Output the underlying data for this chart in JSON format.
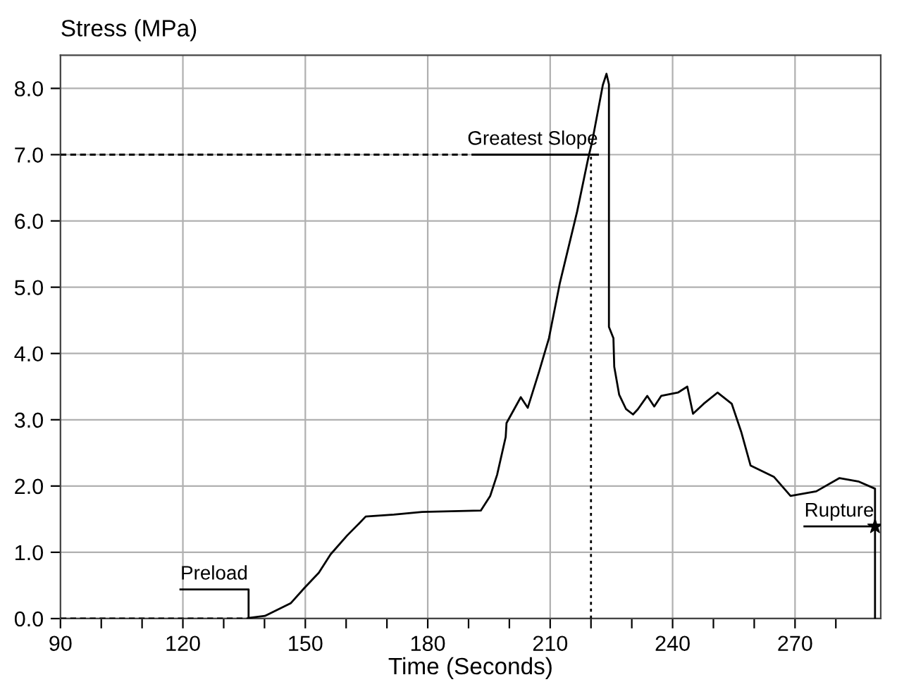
{
  "chart_data": {
    "type": "line",
    "xlabel": "Time (Seconds)",
    "ylabel": "Stress (MPa)",
    "xlim": [
      90,
      291
    ],
    "ylim": [
      0,
      8.5
    ],
    "xticks": [
      90,
      {
        "value": 100,
        "label": null
      },
      {
        "value": 110,
        "label": null
      },
      120,
      {
        "value": 130,
        "label": null
      },
      {
        "value": 140,
        "label": null
      },
      150,
      {
        "value": 160,
        "label": null
      },
      {
        "value": 170,
        "label": null
      },
      180,
      {
        "value": 190,
        "label": null
      },
      {
        "value": 200,
        "label": null
      },
      210,
      {
        "value": 220,
        "label": null
      },
      {
        "value": 230,
        "label": null
      },
      240,
      {
        "value": 250,
        "label": null
      },
      {
        "value": 260,
        "label": null
      },
      270,
      {
        "value": 280,
        "label": null
      }
    ],
    "yticks": [
      {
        "value": 0,
        "label": "0.0"
      },
      {
        "value": 1,
        "label": "1.0"
      },
      {
        "value": 2,
        "label": "2.0"
      },
      {
        "value": 3,
        "label": "3.0"
      },
      {
        "value": 4,
        "label": "4.0"
      },
      {
        "value": 5,
        "label": "5.0"
      },
      {
        "value": 6,
        "label": "6.0"
      },
      {
        "value": 7,
        "label": "7.0"
      },
      {
        "value": 8,
        "label": "8.0"
      }
    ],
    "grid": true,
    "marker": "none",
    "line_style": "solid",
    "series": [
      {
        "color": "#000000",
        "x": [
          136.1,
          140.1,
          146.4,
          149.9,
          153.3,
          156.2,
          160.2,
          163.1,
          164.8,
          171.7,
          178.6,
          193.0,
          195.3,
          197.0,
          199.1,
          199.3,
          202.8,
          204.5,
          207.3,
          209.7,
          212.4,
          216.6,
          219.3,
          220.3,
          222.9,
          223.8,
          224.4,
          224.4,
          225.5,
          225.7,
          226.9,
          228.6,
          230.3,
          231.5,
          233.8,
          235.5,
          237.2,
          241.3,
          243.6,
          245.0,
          247.6,
          251.0,
          254.5,
          256.8,
          259.1,
          264.8,
          268.9,
          275.2,
          280.9,
          285.5,
          289.6,
          289.6
        ],
        "values": [
          0.01,
          0.04,
          0.23,
          0.47,
          0.69,
          0.97,
          1.25,
          1.43,
          1.54,
          1.57,
          1.61,
          1.63,
          1.85,
          2.17,
          2.74,
          2.95,
          3.34,
          3.18,
          3.73,
          4.23,
          5.07,
          6.14,
          6.94,
          7.2,
          8.05,
          8.22,
          8.06,
          4.4,
          4.23,
          3.8,
          3.38,
          3.16,
          3.08,
          3.16,
          3.36,
          3.2,
          3.36,
          3.41,
          3.5,
          3.09,
          3.24,
          3.41,
          3.24,
          2.82,
          2.31,
          2.14,
          1.85,
          1.92,
          2.12,
          2.07,
          1.96,
          0
        ]
      },
      {
        "color": "#000000",
        "line_style": "dashed",
        "x": [
          90,
          136.1
        ],
        "values": [
          0,
          0
        ]
      },
      {
        "color": "#000000",
        "x": [
          119.4,
          136.1,
          136.1
        ],
        "values": [
          0.44,
          0.44,
          0
        ]
      },
      {
        "color": "#000000",
        "line_style": "dashed",
        "x": [
          90,
          191.7
        ],
        "values": [
          7.0,
          7.0
        ]
      },
      {
        "color": "#000000",
        "x": [
          191.7,
          221.7
        ],
        "values": [
          7.0,
          7.0
        ]
      },
      {
        "color": "#000000",
        "line_style": "dotted",
        "x": [
          220.0,
          220.0
        ],
        "values": [
          0,
          7.0
        ]
      },
      {
        "color": "#000000",
        "x": [
          272.3,
          289.6
        ],
        "values": [
          1.39,
          1.39
        ]
      },
      {
        "type": "scatter",
        "color": "#000000",
        "marker": "star",
        "x": [
          289.6
        ],
        "values": [
          1.39
        ]
      }
    ],
    "annotations": [
      {
        "text": "Preload",
        "x": 119.4,
        "y": 0.44
      },
      {
        "text": "Greatest Slope",
        "x": 221.7,
        "y": 7.0
      },
      {
        "text": "Rupture",
        "x": 272.3,
        "y": 1.39
      }
    ]
  }
}
